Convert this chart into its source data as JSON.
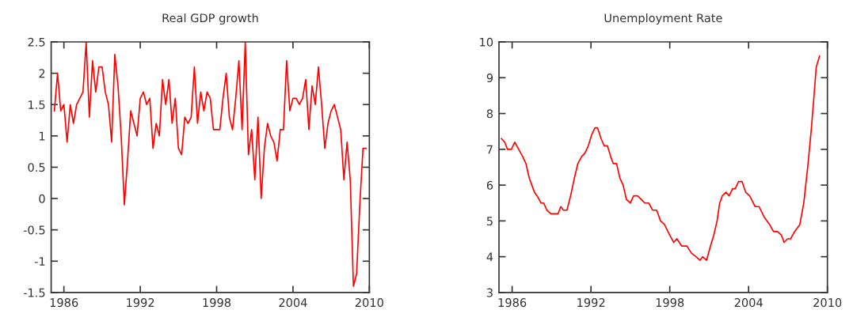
{
  "chart_data": [
    {
      "type": "line",
      "title": "Real GDP growth",
      "color": "#ff0000",
      "grid": false,
      "marker": "none",
      "line_style": "solid",
      "xlim": [
        1985,
        2010
      ],
      "xticks": [
        1986,
        1992,
        1998,
        2004,
        2010
      ],
      "ylim": [
        -1.5,
        2.5
      ],
      "yticks": [
        -1.5,
        -1,
        -0.5,
        0,
        0.5,
        1,
        1.5,
        2,
        2.5
      ],
      "x": [
        1985.25,
        1985.5,
        1985.75,
        1986,
        1986.25,
        1986.5,
        1986.75,
        1987,
        1987.25,
        1987.5,
        1987.75,
        1988,
        1988.25,
        1988.5,
        1988.75,
        1989,
        1989.25,
        1989.5,
        1989.75,
        1990,
        1990.25,
        1990.5,
        1990.75,
        1991,
        1991.25,
        1991.5,
        1991.75,
        1992,
        1992.25,
        1992.5,
        1992.75,
        1993,
        1993.25,
        1993.5,
        1993.75,
        1994,
        1994.25,
        1994.5,
        1994.75,
        1995,
        1995.25,
        1995.5,
        1995.75,
        1996,
        1996.25,
        1996.5,
        1996.75,
        1997,
        1997.25,
        1997.5,
        1997.75,
        1998,
        1998.25,
        1998.5,
        1998.75,
        1999,
        1999.25,
        1999.5,
        1999.75,
        2000,
        2000.25,
        2000.5,
        2000.75,
        2001,
        2001.25,
        2001.5,
        2001.75,
        2002,
        2002.25,
        2002.5,
        2002.75,
        2003,
        2003.25,
        2003.5,
        2003.75,
        2004,
        2004.25,
        2004.5,
        2004.75,
        2005,
        2005.25,
        2005.5,
        2005.75,
        2006,
        2006.25,
        2006.5,
        2006.75,
        2007,
        2007.25,
        2007.5,
        2007.75,
        2008,
        2008.25,
        2008.5,
        2008.75,
        2009,
        2009.25,
        2009.5,
        2009.75
      ],
      "values": [
        1.4,
        2.0,
        1.4,
        1.5,
        0.9,
        1.5,
        1.2,
        1.5,
        1.6,
        1.7,
        2.5,
        1.3,
        2.2,
        1.7,
        2.1,
        2.1,
        1.7,
        1.5,
        0.9,
        2.3,
        1.8,
        1.0,
        -0.1,
        0.6,
        1.4,
        1.2,
        1.0,
        1.6,
        1.7,
        1.5,
        1.6,
        0.8,
        1.2,
        1.0,
        1.9,
        1.5,
        1.9,
        1.2,
        1.6,
        0.8,
        0.7,
        1.3,
        1.2,
        1.3,
        2.1,
        1.2,
        1.7,
        1.4,
        1.7,
        1.6,
        1.1,
        1.1,
        1.1,
        1.6,
        2.0,
        1.3,
        1.1,
        1.6,
        2.2,
        1.1,
        2.5,
        0.7,
        1.1,
        0.3,
        1.3,
        0.0,
        0.8,
        1.2,
        1.0,
        0.9,
        0.6,
        1.1,
        1.1,
        2.2,
        1.4,
        1.6,
        1.6,
        1.5,
        1.6,
        1.9,
        1.1,
        1.8,
        1.5,
        2.1,
        1.5,
        0.8,
        1.2,
        1.4,
        1.5,
        1.3,
        1.1,
        0.3,
        0.9,
        0.3,
        -1.4,
        -1.2,
        -0.1,
        0.8,
        0.8
      ]
    },
    {
      "type": "line",
      "title": "Unemployment Rate",
      "color": "#ff0000",
      "grid": false,
      "marker": "none",
      "line_style": "solid",
      "xlim": [
        1985,
        2010
      ],
      "xticks": [
        1986,
        1992,
        1998,
        2004,
        2010
      ],
      "ylim": [
        3,
        10
      ],
      "yticks": [
        3,
        4,
        5,
        6,
        7,
        8,
        9,
        10
      ],
      "x": [
        1985.19,
        1985.43,
        1985.65,
        1985.94,
        1986.2,
        1986.5,
        1986.8,
        1987.05,
        1987.3,
        1987.5,
        1987.7,
        1987.9,
        1988.2,
        1988.4,
        1988.65,
        1988.95,
        1989.25,
        1989.5,
        1989.7,
        1989.9,
        1990.17,
        1990.45,
        1990.74,
        1991.0,
        1991.3,
        1991.55,
        1991.8,
        1992.05,
        1992.3,
        1992.5,
        1992.77,
        1993.0,
        1993.25,
        1993.5,
        1993.7,
        1993.95,
        1994.2,
        1994.45,
        1994.7,
        1995.0,
        1995.25,
        1995.55,
        1995.82,
        1996.1,
        1996.4,
        1996.7,
        1997.0,
        1997.3,
        1997.6,
        1997.86,
        1998.3,
        1998.54,
        1998.9,
        1999.3,
        1999.65,
        2000.0,
        2000.3,
        2000.5,
        2000.8,
        2001.1,
        2001.35,
        2001.6,
        2001.8,
        2002.0,
        2002.28,
        2002.52,
        2002.78,
        2002.98,
        2003.24,
        2003.5,
        2003.78,
        2004.08,
        2004.5,
        2004.8,
        2005.2,
        2005.6,
        2005.9,
        2006.2,
        2006.5,
        2006.7,
        2006.96,
        2007.2,
        2007.5,
        2007.9,
        2008.2,
        2008.5,
        2008.76,
        2008.96,
        2009.15,
        2009.4
      ],
      "values": [
        7.3,
        7.2,
        7.0,
        7.0,
        7.2,
        7.0,
        6.8,
        6.6,
        6.2,
        6.0,
        5.8,
        5.7,
        5.5,
        5.5,
        5.3,
        5.2,
        5.2,
        5.2,
        5.4,
        5.3,
        5.3,
        5.7,
        6.2,
        6.6,
        6.8,
        6.9,
        7.1,
        7.4,
        7.6,
        7.6,
        7.3,
        7.1,
        7.1,
        6.8,
        6.6,
        6.6,
        6.2,
        6.0,
        5.6,
        5.5,
        5.7,
        5.7,
        5.6,
        5.5,
        5.5,
        5.3,
        5.3,
        5.0,
        4.9,
        4.7,
        4.4,
        4.5,
        4.3,
        4.3,
        4.1,
        4.0,
        3.9,
        4.0,
        3.9,
        4.3,
        4.6,
        5.0,
        5.5,
        5.7,
        5.8,
        5.7,
        5.9,
        5.9,
        6.1,
        6.1,
        5.8,
        5.7,
        5.4,
        5.4,
        5.1,
        4.9,
        4.7,
        4.7,
        4.6,
        4.4,
        4.5,
        4.5,
        4.7,
        4.9,
        5.5,
        6.5,
        7.5,
        8.4,
        9.3,
        9.6
      ]
    }
  ]
}
